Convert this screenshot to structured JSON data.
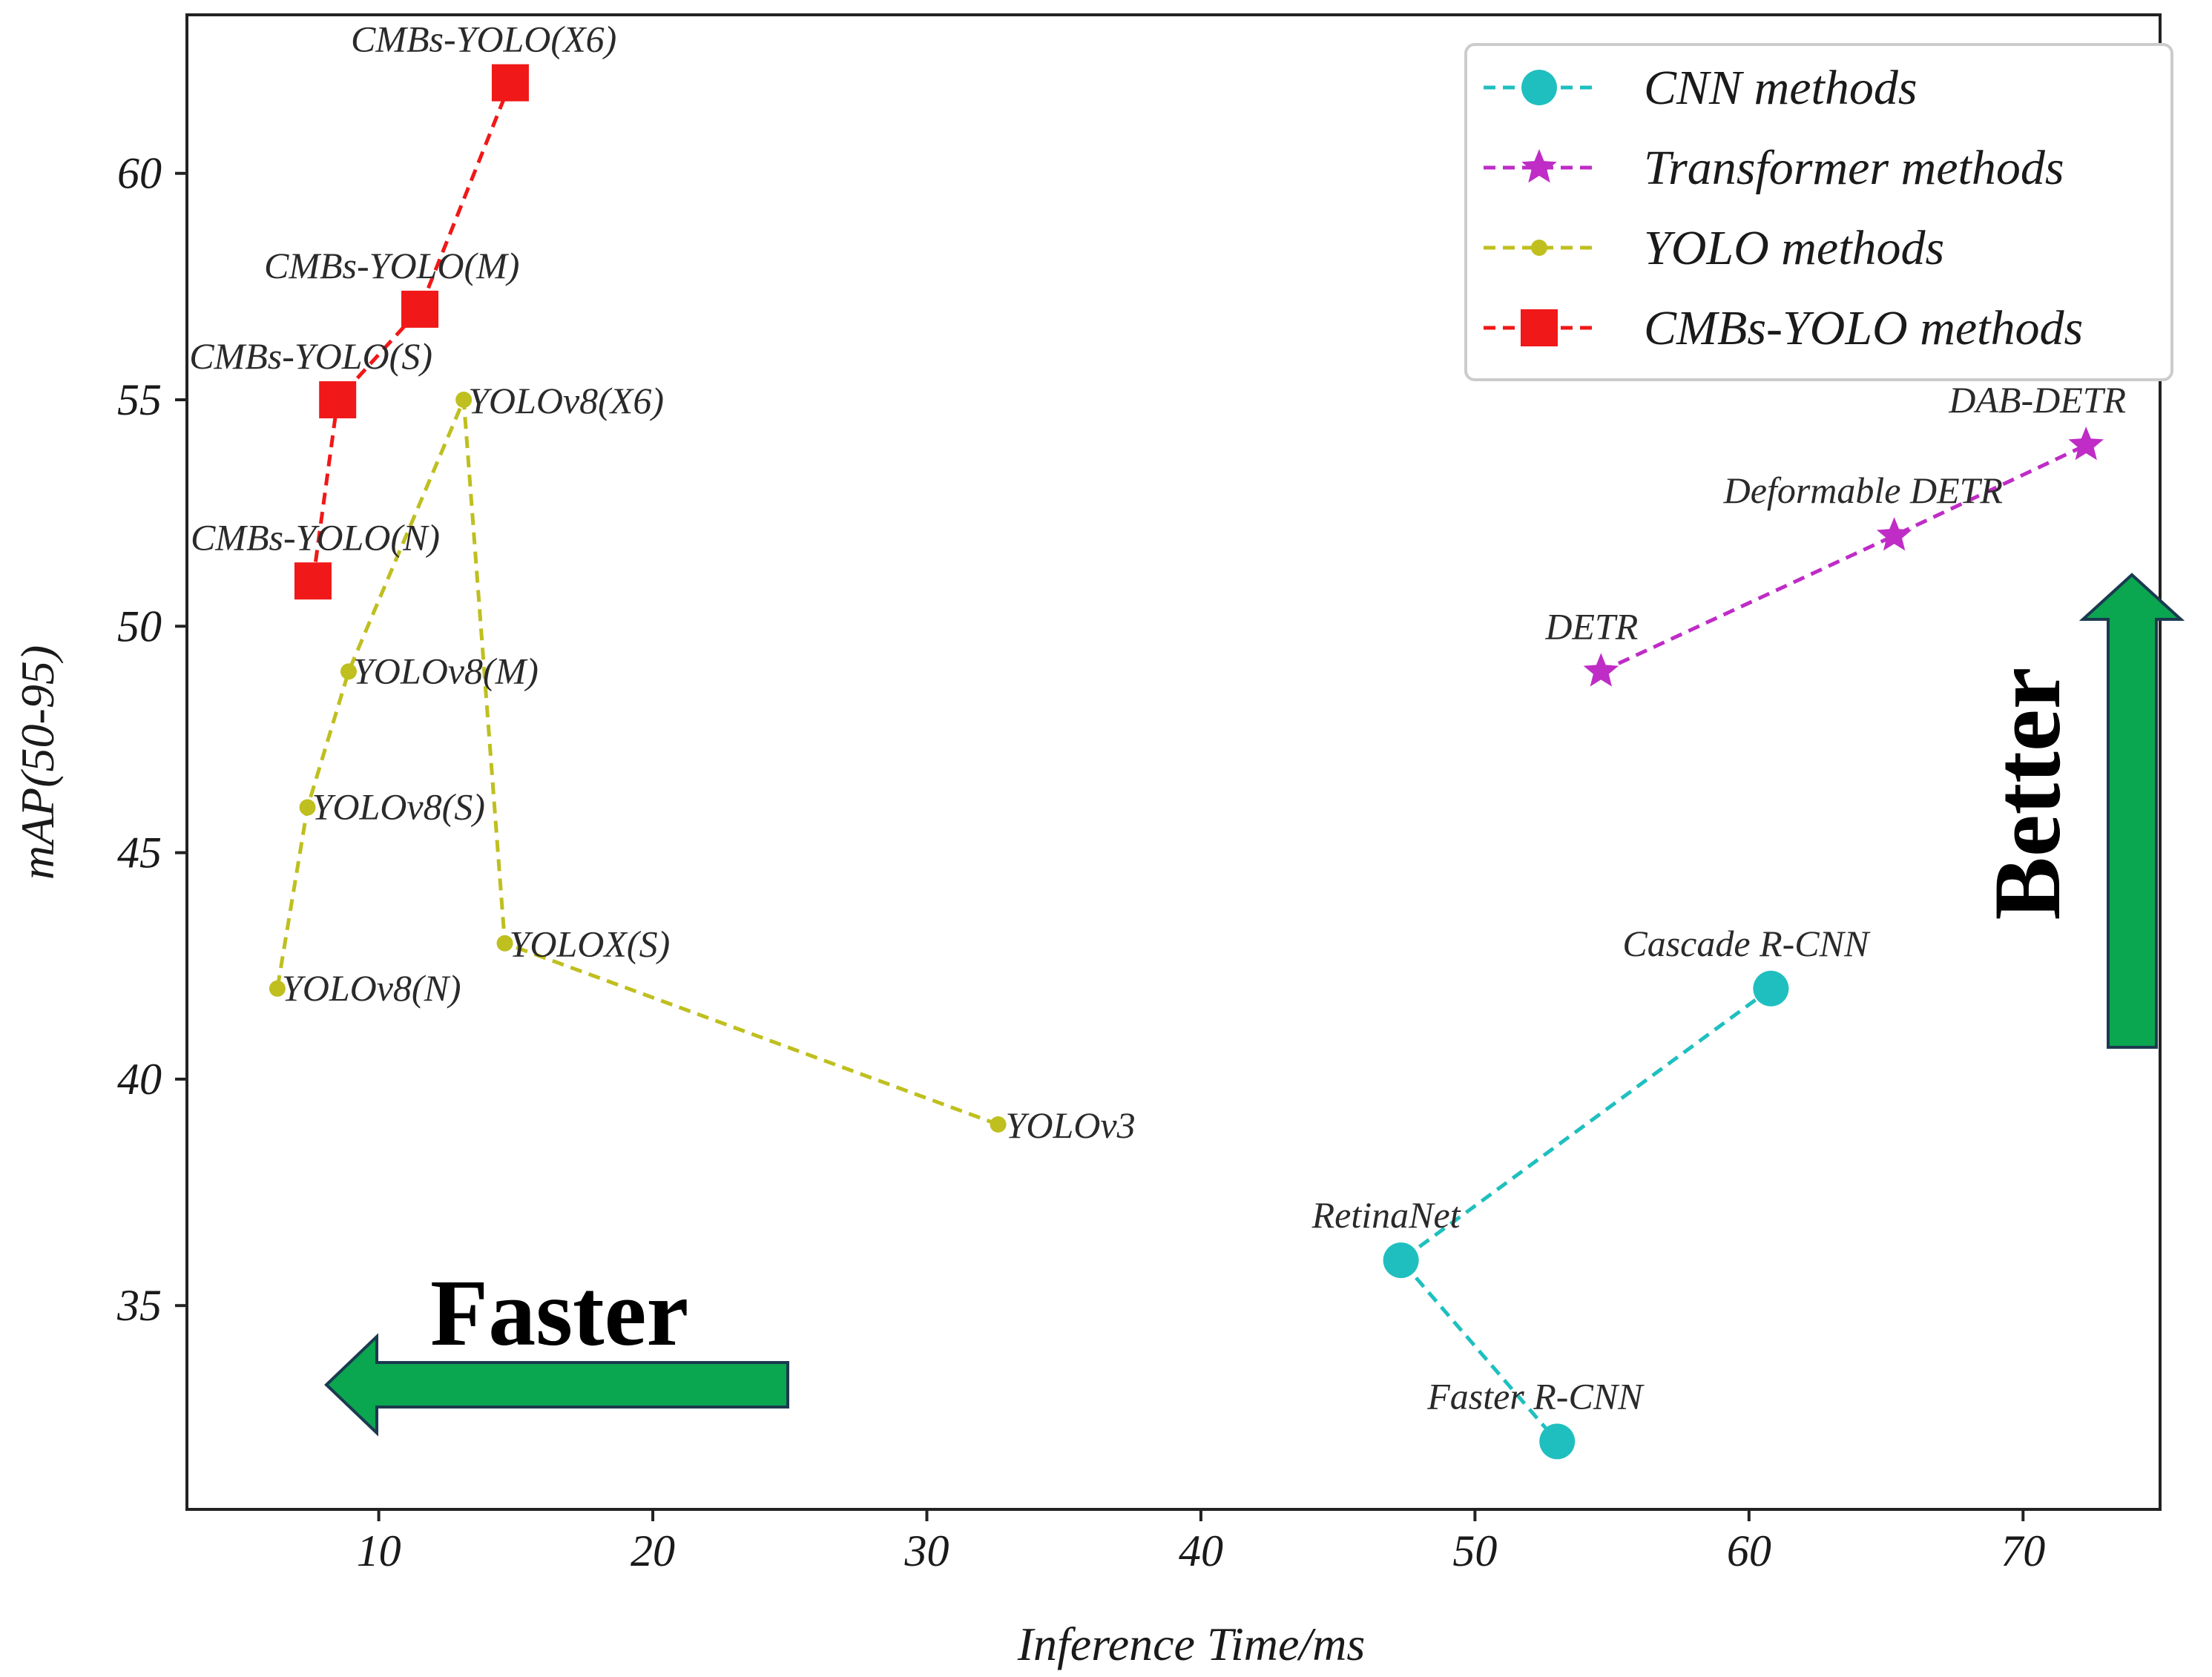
{
  "chart_data": {
    "type": "line",
    "xlabel": "Inference Time/ms",
    "ylabel": "mAP(50-95)",
    "xlim": [
      3,
      75
    ],
    "ylim": [
      30.5,
      63.5
    ],
    "xticks": [
      10,
      20,
      30,
      40,
      50,
      60,
      70
    ],
    "yticks": [
      35,
      40,
      45,
      50,
      55,
      60
    ],
    "grid": false,
    "legend_position": "top-right",
    "series": [
      {
        "name": "CNN methods",
        "color": "#1fbfbf",
        "marker": "circle",
        "points": [
          {
            "x": 60.8,
            "y": 42,
            "label": "Cascade R-CNN"
          },
          {
            "x": 47.3,
            "y": 36,
            "label": "RetinaNet"
          },
          {
            "x": 53.0,
            "y": 32,
            "label": "Faster R-CNN"
          }
        ]
      },
      {
        "name": "Transformer methods",
        "color": "#bf2cc6",
        "marker": "star",
        "points": [
          {
            "x": 54.6,
            "y": 49,
            "label": "DETR"
          },
          {
            "x": 65.3,
            "y": 52,
            "label": "Deformable DETR"
          },
          {
            "x": 72.3,
            "y": 54,
            "label": "DAB-DETR"
          }
        ]
      },
      {
        "name": "YOLO methods",
        "color": "#bfbf1f",
        "marker": "dot",
        "points": [
          {
            "x": 32.6,
            "y": 39,
            "label": "YOLOv3"
          },
          {
            "x": 14.6,
            "y": 43,
            "label": "YOLOX(S)"
          },
          {
            "x": 13.1,
            "y": 55,
            "label": "YOLOv8(X6)"
          },
          {
            "x": 8.9,
            "y": 49,
            "label": "YOLOv8(M)"
          },
          {
            "x": 7.4,
            "y": 46,
            "label": "YOLOv8(S)"
          },
          {
            "x": 6.3,
            "y": 42,
            "label": "YOLOv8(N)"
          }
        ]
      },
      {
        "name": "CMBs-YOLO methods",
        "color": "#f01818",
        "marker": "square",
        "points": [
          {
            "x": 7.6,
            "y": 51,
            "label": "CMBs-YOLO(N)"
          },
          {
            "x": 8.5,
            "y": 55,
            "label": "CMBs-YOLO(S)"
          },
          {
            "x": 11.5,
            "y": 57,
            "label": "CMBs-YOLO(M)"
          },
          {
            "x": 14.8,
            "y": 62,
            "label": "CMBs-YOLO(X6)"
          }
        ]
      }
    ],
    "annotations": {
      "faster_text": "Faster",
      "better_text": "Better",
      "arrow_color": "#0aa650"
    }
  }
}
